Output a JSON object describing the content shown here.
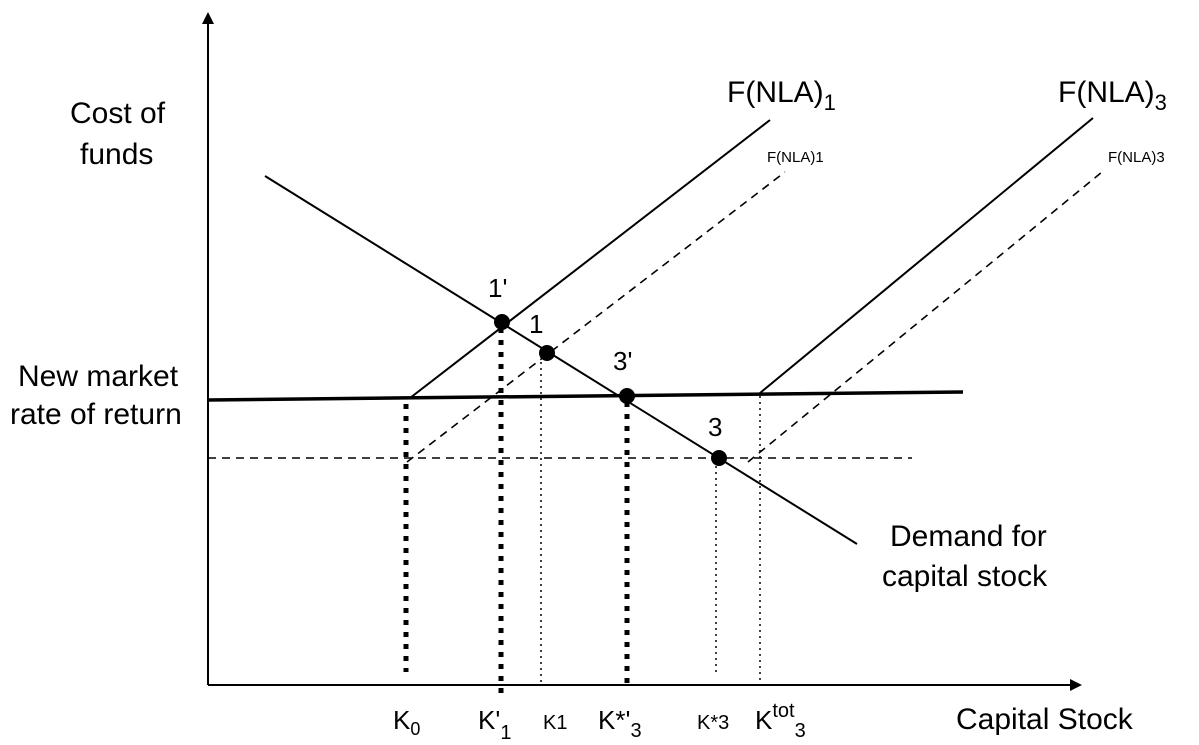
{
  "axes": {
    "y_label_line1": "Cost of",
    "y_label_line2": "funds",
    "x_label": "Capital Stock"
  },
  "rate_label": {
    "line1": "New market",
    "line2": "rate of return"
  },
  "curves": {
    "f1_solid": "F(NLA)",
    "f1_solid_sub": "1",
    "f1_dashed": "F(NLA)1",
    "f3_solid": "F(NLA)",
    "f3_solid_sub": "3",
    "f3_dashed": "F(NLA)3",
    "demand_line1": "Demand for",
    "demand_line2": "capital stock"
  },
  "points": {
    "p1prime": "1'",
    "p1": "1",
    "p3prime": "3'",
    "p3": "3"
  },
  "ticks": {
    "k0": "K",
    "k0_sub": "0",
    "k1prime": "K'",
    "k1prime_sub": "1",
    "k1": "K1",
    "kstar3prime": "K*'",
    "kstar3prime_sub": "3",
    "kstar3_base": "K",
    "kstar3_rest": "*3",
    "ktot_base": "K",
    "ktot_sup": "tot",
    "ktot_sub": "3"
  }
}
